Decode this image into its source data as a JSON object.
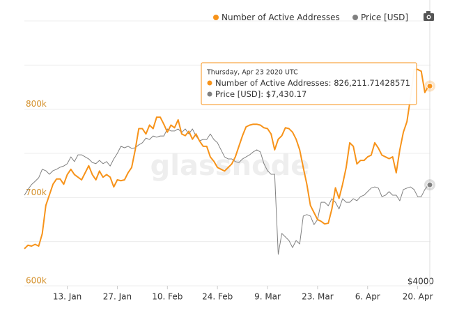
{
  "chart_data": {
    "type": "line",
    "legend": {
      "position": "top-right"
    },
    "watermark": "glassnode",
    "x": [
      "2020-01-01",
      "2020-01-02",
      "2020-01-03",
      "2020-01-04",
      "2020-01-05",
      "2020-01-06",
      "2020-01-07",
      "2020-01-08",
      "2020-01-09",
      "2020-01-10",
      "2020-01-11",
      "2020-01-12",
      "2020-01-13",
      "2020-01-14",
      "2020-01-15",
      "2020-01-16",
      "2020-01-17",
      "2020-01-18",
      "2020-01-19",
      "2020-01-20",
      "2020-01-21",
      "2020-01-22",
      "2020-01-23",
      "2020-01-24",
      "2020-01-25",
      "2020-01-26",
      "2020-01-27",
      "2020-01-28",
      "2020-01-29",
      "2020-01-30",
      "2020-01-31",
      "2020-02-01",
      "2020-02-02",
      "2020-02-03",
      "2020-02-04",
      "2020-02-05",
      "2020-02-06",
      "2020-02-07",
      "2020-02-08",
      "2020-02-09",
      "2020-02-10",
      "2020-02-11",
      "2020-02-12",
      "2020-02-13",
      "2020-02-14",
      "2020-02-15",
      "2020-02-16",
      "2020-02-17",
      "2020-02-18",
      "2020-02-19",
      "2020-02-20",
      "2020-02-21",
      "2020-02-22",
      "2020-02-23",
      "2020-02-24",
      "2020-02-25",
      "2020-02-26",
      "2020-02-27",
      "2020-02-28",
      "2020-02-29",
      "2020-03-01",
      "2020-03-02",
      "2020-03-03",
      "2020-03-04",
      "2020-03-05",
      "2020-03-06",
      "2020-03-07",
      "2020-03-08",
      "2020-03-09",
      "2020-03-10",
      "2020-03-11",
      "2020-03-12",
      "2020-03-13",
      "2020-03-14",
      "2020-03-15",
      "2020-03-16",
      "2020-03-17",
      "2020-03-18",
      "2020-03-19",
      "2020-03-20",
      "2020-03-21",
      "2020-03-22",
      "2020-03-23",
      "2020-03-24",
      "2020-03-25",
      "2020-03-26",
      "2020-03-27",
      "2020-03-28",
      "2020-03-29",
      "2020-03-30",
      "2020-03-31",
      "2020-04-01",
      "2020-04-02",
      "2020-04-03",
      "2020-04-04",
      "2020-04-05",
      "2020-04-06",
      "2020-04-07",
      "2020-04-08",
      "2020-04-09",
      "2020-04-10",
      "2020-04-11",
      "2020-04-12",
      "2020-04-13",
      "2020-04-14",
      "2020-04-15",
      "2020-04-16",
      "2020-04-17",
      "2020-04-18",
      "2020-04-19",
      "2020-04-20",
      "2020-04-21",
      "2020-04-22",
      "2020-04-23"
    ],
    "xlim": [
      "2020-01-01",
      "2020-04-23"
    ],
    "xticks": [
      {
        "value": "2020-01-13",
        "label": "13. Jan"
      },
      {
        "value": "2020-01-27",
        "label": "27. Jan"
      },
      {
        "value": "2020-02-10",
        "label": "10. Feb"
      },
      {
        "value": "2020-02-24",
        "label": "24. Feb"
      },
      {
        "value": "2020-03-09",
        "label": "9. Mar"
      },
      {
        "value": "2020-03-23",
        "label": "23. Mar"
      },
      {
        "value": "2020-04-06",
        "label": "6. Apr"
      },
      {
        "value": "2020-04-20",
        "label": "20. Apr"
      }
    ],
    "ylim": [
      600000,
      900000
    ],
    "yticks": [
      {
        "value": 600000,
        "label": "600k"
      },
      {
        "value": 700000,
        "label": "700k"
      },
      {
        "value": 800000,
        "label": "800k"
      }
    ],
    "ygrid": [
      600000,
      650000,
      700000,
      750000,
      800000,
      850000,
      900000
    ],
    "y2lim": [
      4000,
      13000
    ],
    "y2ticks": [
      {
        "value": 4000,
        "label": "$4000"
      }
    ],
    "series": [
      {
        "name": "Number of Active Addresses",
        "color": "#f7931a",
        "values": [
          642000,
          646000,
          645000,
          647000,
          645000,
          659000,
          691000,
          703000,
          715000,
          721000,
          721000,
          715000,
          726000,
          732000,
          726000,
          723000,
          720000,
          728000,
          736000,
          726000,
          720000,
          730000,
          723000,
          726000,
          723000,
          712000,
          720000,
          719000,
          720000,
          728000,
          734000,
          754000,
          778000,
          778000,
          772000,
          782000,
          778000,
          791000,
          791000,
          783000,
          774000,
          782000,
          779000,
          788000,
          772000,
          770000,
          775000,
          766000,
          772000,
          764000,
          758000,
          758000,
          746000,
          741000,
          734000,
          732000,
          730000,
          734000,
          738000,
          746000,
          758000,
          770000,
          780000,
          782000,
          783000,
          783000,
          782000,
          779000,
          778000,
          772000,
          754000,
          766000,
          770000,
          779000,
          778000,
          774000,
          766000,
          754000,
          734000,
          715000,
          691000,
          683000,
          675000,
          673000,
          670000,
          671000,
          687000,
          711000,
          699000,
          715000,
          734000,
          762000,
          758000,
          738000,
          742000,
          742000,
          746000,
          748000,
          762000,
          756000,
          748000,
          746000,
          744000,
          746000,
          728000,
          754000,
          774000,
          786000,
          813000,
          845000,
          845000,
          843000,
          819000,
          826211.71428571
        ]
      },
      {
        "name": "Price [USD]",
        "color": "#808080",
        "axis": "y2",
        "values": [
          7080,
          7270,
          7440,
          7550,
          7670,
          7960,
          7910,
          7790,
          7910,
          7960,
          8030,
          8070,
          8150,
          8380,
          8220,
          8450,
          8450,
          8380,
          8310,
          8190,
          8150,
          8260,
          8150,
          8220,
          8070,
          8310,
          8500,
          8740,
          8690,
          8740,
          8670,
          8690,
          8790,
          8860,
          9020,
          8970,
          9090,
          9050,
          9090,
          9090,
          9330,
          9260,
          9260,
          9330,
          9210,
          9330,
          9160,
          9330,
          9090,
          8930,
          8970,
          8970,
          9160,
          8970,
          8860,
          8620,
          8380,
          8310,
          8310,
          8220,
          8190,
          8310,
          8380,
          8450,
          8550,
          8620,
          8550,
          8150,
          7910,
          7790,
          7790,
          5070,
          5780,
          5660,
          5540,
          5300,
          5540,
          5420,
          6370,
          6420,
          6370,
          6080,
          6250,
          6840,
          6840,
          6720,
          6960,
          6840,
          6610,
          6960,
          6840,
          6840,
          6960,
          6890,
          7030,
          7080,
          7200,
          7320,
          7360,
          7320,
          7030,
          7080,
          7200,
          7080,
          7080,
          6890,
          7270,
          7320,
          7360,
          7270,
          7030,
          7030,
          7270,
          7430.17
        ]
      }
    ],
    "tooltip": {
      "title": "Thursday, Apr 23 2020 UTC",
      "rows": [
        "Number of Active Addresses: 826,211.71428571",
        "Price [USD]: $7,430.17"
      ]
    }
  }
}
